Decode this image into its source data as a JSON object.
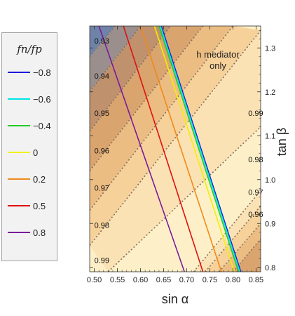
{
  "chart_data": {
    "type": "line",
    "xlabel": "sin α",
    "ylabel": "tan β",
    "xlim": [
      0.49,
      0.86
    ],
    "ylim": [
      0.79,
      1.35
    ],
    "xticks": [
      0.5,
      0.55,
      0.6,
      0.65,
      0.7,
      0.75,
      0.8,
      0.85
    ],
    "xtick_labels": [
      "0.50",
      "0.55",
      "0.60",
      "0.65",
      "0.70",
      "0.75",
      "0.80",
      "0.85"
    ],
    "yticks": [
      0.8,
      0.9,
      1.0,
      1.1,
      1.2,
      1.3
    ],
    "ytick_labels": [
      "0.8",
      "0.9",
      "1.0",
      "1.1",
      "1.2",
      "1.3"
    ],
    "region_label": "h mediator only",
    "legend_title": "fn/fp",
    "series": [
      {
        "name": "−0.8",
        "color": "#1a1ad9",
        "points": [
          [
            0.645,
            1.35
          ],
          [
            0.817,
            0.79
          ]
        ]
      },
      {
        "name": "−0.6",
        "color": "#00e5e5",
        "points": [
          [
            0.643,
            1.35
          ],
          [
            0.815,
            0.79
          ]
        ]
      },
      {
        "name": "−0.4",
        "color": "#22cc22",
        "points": [
          [
            0.64,
            1.35
          ],
          [
            0.812,
            0.79
          ]
        ]
      },
      {
        "name": "0",
        "color": "#f0f000",
        "points": [
          [
            0.63,
            1.35
          ],
          [
            0.803,
            0.79
          ]
        ]
      },
      {
        "name": "0.2",
        "color": "#f08a1a",
        "points": [
          [
            0.6,
            1.35
          ],
          [
            0.775,
            0.79
          ]
        ]
      },
      {
        "name": "0.5",
        "color": "#e01010",
        "points": [
          [
            0.563,
            1.35
          ],
          [
            0.735,
            0.79
          ]
        ]
      },
      {
        "name": "0.8",
        "color": "#7a1a9a",
        "points": [
          [
            0.51,
            1.35
          ],
          [
            0.695,
            0.79
          ]
        ]
      }
    ],
    "contours": [
      {
        "label": "0.93",
        "points": [
          [
            0.49,
            1.28
          ],
          [
            0.545,
            1.35
          ]
        ]
      },
      {
        "label": "0.94",
        "points": [
          [
            0.49,
            1.2
          ],
          [
            0.6,
            1.35
          ]
        ]
      },
      {
        "label": "0.95",
        "points": [
          [
            0.49,
            1.11
          ],
          [
            0.665,
            1.35
          ]
        ]
      },
      {
        "label": "0.96",
        "points": [
          [
            0.49,
            1.02
          ],
          [
            0.735,
            1.35
          ]
        ]
      },
      {
        "label": "0.97",
        "points": [
          [
            0.49,
            0.93
          ],
          [
            0.8,
            1.35
          ]
        ]
      },
      {
        "label": "0.98",
        "points": [
          [
            0.49,
            0.85
          ],
          [
            0.86,
            1.34
          ]
        ]
      },
      {
        "label": "0.99",
        "points": [
          [
            0.53,
            0.79
          ],
          [
            0.86,
            1.12
          ]
        ]
      },
      {
        "label": "",
        "points": [
          [
            0.715,
            0.79
          ],
          [
            0.86,
            0.975
          ]
        ]
      },
      {
        "label": "",
        "points": [
          [
            0.74,
            0.79
          ],
          [
            0.86,
            0.94
          ]
        ]
      },
      {
        "label": "",
        "points": [
          [
            0.77,
            0.79
          ],
          [
            0.86,
            0.9
          ]
        ]
      },
      {
        "label": "",
        "points": [
          [
            0.8,
            0.79
          ],
          [
            0.86,
            0.865
          ]
        ]
      }
    ],
    "contour_label_positions": [
      {
        "label": "0.93",
        "x": 0.5,
        "y": 1.31
      },
      {
        "label": "0.94",
        "x": 0.5,
        "y": 1.23
      },
      {
        "label": "0.95",
        "x": 0.5,
        "y": 1.145
      },
      {
        "label": "0.96",
        "x": 0.5,
        "y": 1.06
      },
      {
        "label": "0.97",
        "x": 0.5,
        "y": 0.975
      },
      {
        "label": "0.98",
        "x": 0.5,
        "y": 0.89
      },
      {
        "label": "0.99",
        "x": 0.5,
        "y": 0.81
      },
      {
        "label": "0.99",
        "x": 0.833,
        "y": 1.145
      },
      {
        "label": "0.98",
        "x": 0.833,
        "y": 1.04
      },
      {
        "label": "0.97",
        "x": 0.833,
        "y": 0.965
      },
      {
        "label": "0.96",
        "x": 0.833,
        "y": 0.915
      }
    ],
    "grid": false,
    "legend_position": "left"
  }
}
